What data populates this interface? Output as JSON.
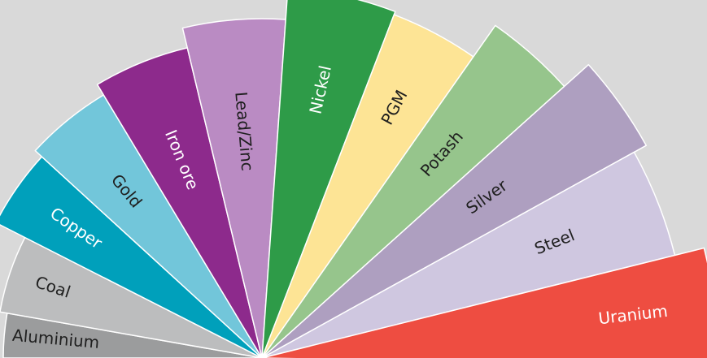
{
  "background": "#d9d9d9",
  "segments": [
    {
      "label": "Aluminium",
      "color": "#9b9c9d",
      "text_color": "#1f1f1f"
    },
    {
      "label": "Coal",
      "color": "#bcbdbe",
      "text_color": "#1f1f1f"
    },
    {
      "label": "Copper",
      "color": "#00a0bb",
      "text_color": "#ffffff"
    },
    {
      "label": "Gold",
      "color": "#72c6da",
      "text_color": "#1f1f1f"
    },
    {
      "label": "Iron ore",
      "color": "#8d2a8c",
      "text_color": "#ffffff"
    },
    {
      "label": "Lead/Zinc",
      "color": "#ba8bc3",
      "text_color": "#1f1f1f"
    },
    {
      "label": "Nickel",
      "color": "#2e9b48",
      "text_color": "#ffffff"
    },
    {
      "label": "PGM",
      "color": "#fde495",
      "text_color": "#1f1f1f"
    },
    {
      "label": "Potash",
      "color": "#96c58c",
      "text_color": "#1f1f1f"
    },
    {
      "label": "Silver",
      "color": "#ae9fc0",
      "text_color": "#1f1f1f"
    },
    {
      "label": "Steel",
      "color": "#cfc7e0",
      "text_color": "#1f1f1f"
    },
    {
      "label": "Uranium",
      "color": "#ee4d41",
      "text_color": "#ffffff"
    }
  ]
}
